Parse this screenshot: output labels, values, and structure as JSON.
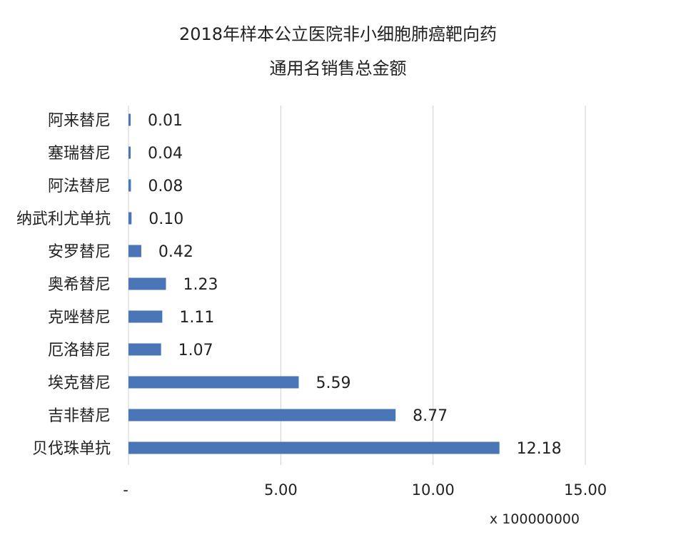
{
  "chart_data": {
    "type": "bar",
    "orientation": "horizontal",
    "title_lines": [
      "2018年样本公立医院非小细胞肺癌靶向药",
      "通用名销售总金额"
    ],
    "categories": [
      "阿来替尼",
      "塞瑞替尼",
      "阿法替尼",
      "纳武利尤单抗",
      "安罗替尼",
      "奥希替尼",
      "克唑替尼",
      "厄洛替尼",
      "埃克替尼",
      "吉非替尼",
      "贝伐珠单抗"
    ],
    "values": [
      0.01,
      0.04,
      0.08,
      0.1,
      0.42,
      1.23,
      1.11,
      1.07,
      5.59,
      8.77,
      12.18
    ],
    "value_labels": [
      "0.01",
      "0.04",
      "0.08",
      "0.10",
      "0.42",
      "1.23",
      "1.11",
      "1.07",
      "5.59",
      "8.77",
      "12.18"
    ],
    "x_ticks": [
      {
        "value": 0,
        "label": "-"
      },
      {
        "value": 5,
        "label": "5.00"
      },
      {
        "value": 10,
        "label": "10.00"
      },
      {
        "value": 15,
        "label": "15.00"
      }
    ],
    "xlim": [
      0,
      15
    ],
    "x_unit_label": "x 100000000",
    "grid": "vertical",
    "bar_color": "#4a76b8",
    "grid_color": "#d0d0d0"
  }
}
